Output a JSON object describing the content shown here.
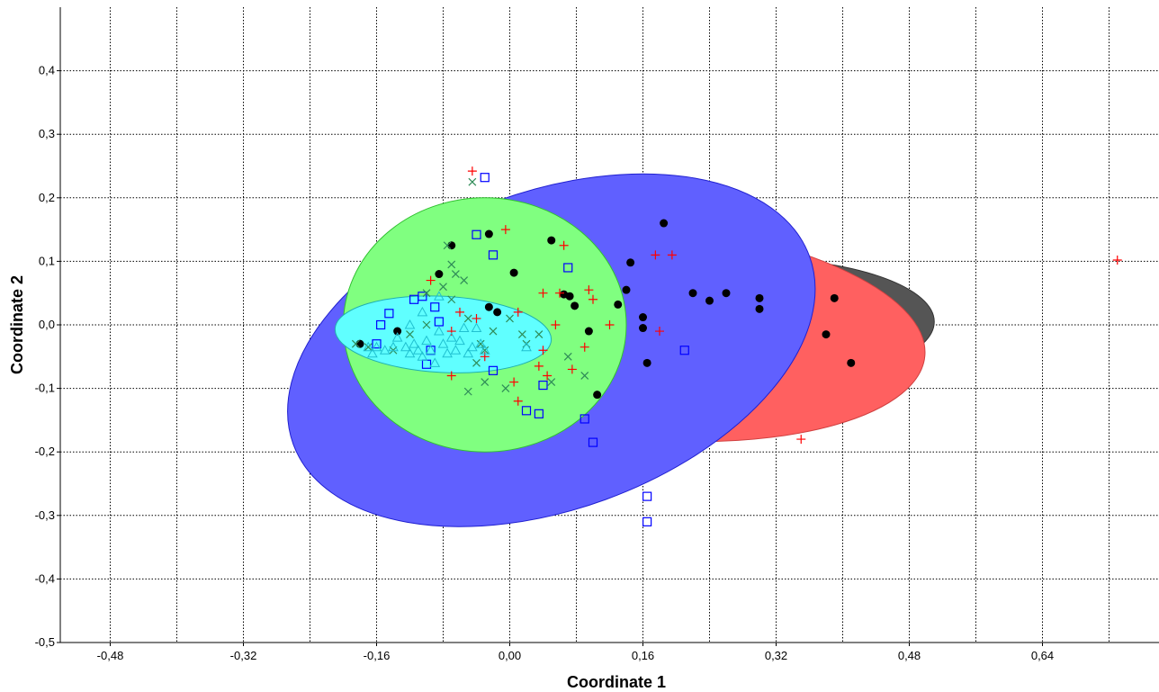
{
  "chart_data": {
    "type": "scatter",
    "title": "",
    "xlabel": "Coordinate 1",
    "ylabel": "Coordinate 2",
    "xlim": [
      -0.54,
      0.78
    ],
    "ylim": [
      -0.5,
      0.5
    ],
    "x_ticks": [
      "-0,48",
      "-0,32",
      "-0,16",
      "0,00",
      "0,16",
      "0,32",
      "0,48",
      "0,64"
    ],
    "y_ticks": [
      "-0,5",
      "-0,4",
      "-0,3",
      "-0,2",
      "-0,1",
      "0,0",
      "0,1",
      "0,2",
      "0,3",
      "0,4"
    ],
    "x_grid": [
      -0.56,
      -0.48,
      -0.4,
      -0.32,
      -0.24,
      -0.16,
      -0.08,
      0.0,
      0.08,
      0.16,
      0.24,
      0.32,
      0.4,
      0.48,
      0.56,
      0.64,
      0.72
    ],
    "y_grid": [
      -0.4,
      -0.3,
      -0.2,
      -0.1,
      0.0,
      0.1,
      0.2,
      0.3,
      0.4
    ],
    "grid": true,
    "ellipses": [
      {
        "color": "#555555",
        "cx": 0.29,
        "cy": 0.005,
        "rx": 0.22,
        "ry": 0.1,
        "rot": 0
      },
      {
        "color": "#ff6060",
        "cx": 0.16,
        "cy": -0.01,
        "rx": 0.34,
        "ry": 0.17,
        "rot": 5
      },
      {
        "color": "#6060ff",
        "cx": 0.05,
        "cy": -0.04,
        "rx": 0.33,
        "ry": 0.25,
        "rot": -20
      },
      {
        "color": "#80ff80",
        "cx": -0.03,
        "cy": 0.0,
        "rx": 0.17,
        "ry": 0.2,
        "rot": 0
      },
      {
        "color": "#60ffff",
        "cx": -0.08,
        "cy": -0.015,
        "rx": 0.13,
        "ry": 0.06,
        "rot": 3
      }
    ],
    "series": [
      {
        "marker": "dot",
        "color": "#000000",
        "points": [
          [
            -0.18,
            -0.03
          ],
          [
            -0.135,
            -0.01
          ],
          [
            -0.085,
            0.08
          ],
          [
            -0.07,
            0.125
          ],
          [
            -0.025,
            0.028
          ],
          [
            -0.025,
            0.143
          ],
          [
            -0.015,
            0.02
          ],
          [
            0.005,
            0.082
          ],
          [
            0.05,
            0.133
          ],
          [
            0.065,
            0.048
          ],
          [
            0.072,
            0.045
          ],
          [
            0.078,
            0.03
          ],
          [
            0.095,
            -0.01
          ],
          [
            0.105,
            -0.11
          ],
          [
            0.13,
            0.032
          ],
          [
            0.14,
            0.055
          ],
          [
            0.145,
            0.098
          ],
          [
            0.16,
            -0.005
          ],
          [
            0.16,
            0.012
          ],
          [
            0.165,
            -0.06
          ],
          [
            0.185,
            0.16
          ],
          [
            0.22,
            0.05
          ],
          [
            0.24,
            0.038
          ],
          [
            0.26,
            0.05
          ],
          [
            0.3,
            0.025
          ],
          [
            0.3,
            0.042
          ],
          [
            0.38,
            -0.015
          ],
          [
            0.39,
            0.042
          ],
          [
            0.41,
            -0.06
          ]
        ]
      },
      {
        "marker": "plus",
        "color": "#ff0000",
        "points": [
          [
            -0.045,
            0.242
          ],
          [
            -0.005,
            0.15
          ],
          [
            -0.095,
            0.07
          ],
          [
            -0.06,
            0.02
          ],
          [
            -0.04,
            0.01
          ],
          [
            -0.07,
            -0.01
          ],
          [
            -0.07,
            -0.08
          ],
          [
            -0.03,
            -0.05
          ],
          [
            0.005,
            -0.09
          ],
          [
            0.01,
            -0.12
          ],
          [
            0.01,
            0.02
          ],
          [
            0.035,
            -0.065
          ],
          [
            0.04,
            0.05
          ],
          [
            0.04,
            -0.04
          ],
          [
            0.045,
            -0.08
          ],
          [
            0.055,
            0.0
          ],
          [
            0.06,
            0.05
          ],
          [
            0.065,
            0.125
          ],
          [
            0.075,
            -0.07
          ],
          [
            0.09,
            -0.035
          ],
          [
            0.095,
            0.055
          ],
          [
            0.1,
            0.04
          ],
          [
            0.12,
            0.0
          ],
          [
            0.175,
            0.11
          ],
          [
            0.18,
            -0.01
          ],
          [
            0.195,
            0.11
          ],
          [
            0.35,
            -0.18
          ],
          [
            0.73,
            0.102
          ]
        ]
      },
      {
        "marker": "square",
        "color": "#0000ff",
        "points": [
          [
            -0.155,
            0.0
          ],
          [
            -0.16,
            -0.03
          ],
          [
            -0.145,
            0.018
          ],
          [
            -0.115,
            0.04
          ],
          [
            -0.105,
            0.045
          ],
          [
            -0.09,
            0.028
          ],
          [
            -0.085,
            0.005
          ],
          [
            -0.095,
            -0.04
          ],
          [
            -0.1,
            -0.062
          ],
          [
            -0.04,
            0.142
          ],
          [
            -0.03,
            0.232
          ],
          [
            -0.02,
            0.11
          ],
          [
            -0.02,
            -0.072
          ],
          [
            0.02,
            -0.135
          ],
          [
            0.035,
            -0.14
          ],
          [
            0.04,
            -0.095
          ],
          [
            0.07,
            0.09
          ],
          [
            0.09,
            -0.148
          ],
          [
            0.1,
            -0.185
          ],
          [
            0.165,
            -0.27
          ],
          [
            0.165,
            -0.31
          ],
          [
            0.21,
            -0.04
          ]
        ]
      },
      {
        "marker": "cross",
        "color": "#2e8b57",
        "points": [
          [
            -0.045,
            0.225
          ],
          [
            -0.075,
            0.125
          ],
          [
            -0.07,
            0.095
          ],
          [
            -0.065,
            0.08
          ],
          [
            -0.08,
            0.06
          ],
          [
            -0.1,
            0.05
          ],
          [
            -0.055,
            0.07
          ],
          [
            -0.07,
            0.04
          ],
          [
            -0.1,
            0.0
          ],
          [
            -0.05,
            0.01
          ],
          [
            -0.035,
            -0.03
          ],
          [
            -0.03,
            -0.04
          ],
          [
            -0.02,
            -0.01
          ],
          [
            -0.04,
            -0.06
          ],
          [
            -0.03,
            -0.09
          ],
          [
            -0.05,
            -0.105
          ],
          [
            -0.005,
            -0.1
          ],
          [
            0.0,
            0.01
          ],
          [
            0.015,
            -0.015
          ],
          [
            0.02,
            -0.03
          ],
          [
            0.035,
            -0.015
          ],
          [
            0.05,
            -0.09
          ],
          [
            0.09,
            -0.08
          ],
          [
            0.07,
            -0.05
          ],
          [
            -0.17,
            -0.035
          ],
          [
            -0.185,
            -0.03
          ],
          [
            -0.14,
            -0.04
          ],
          [
            -0.12,
            -0.015
          ]
        ]
      },
      {
        "marker": "triangle",
        "color": "#20c0d0",
        "points": [
          [
            -0.17,
            -0.035
          ],
          [
            -0.165,
            -0.045
          ],
          [
            -0.16,
            -0.035
          ],
          [
            -0.15,
            -0.04
          ],
          [
            -0.14,
            -0.035
          ],
          [
            -0.135,
            -0.02
          ],
          [
            -0.125,
            -0.035
          ],
          [
            -0.12,
            -0.045
          ],
          [
            -0.115,
            -0.03
          ],
          [
            -0.11,
            -0.04
          ],
          [
            -0.105,
            -0.05
          ],
          [
            -0.1,
            -0.025
          ],
          [
            -0.095,
            -0.04
          ],
          [
            -0.09,
            -0.06
          ],
          [
            -0.085,
            -0.01
          ],
          [
            -0.08,
            -0.03
          ],
          [
            -0.075,
            -0.045
          ],
          [
            -0.07,
            -0.02
          ],
          [
            -0.065,
            -0.04
          ],
          [
            -0.06,
            -0.025
          ],
          [
            -0.055,
            -0.005
          ],
          [
            -0.05,
            -0.045
          ],
          [
            -0.045,
            -0.035
          ],
          [
            -0.04,
            -0.005
          ],
          [
            -0.035,
            -0.03
          ],
          [
            -0.03,
            -0.04
          ],
          [
            -0.105,
            0.02
          ],
          [
            -0.085,
            0.045
          ],
          [
            -0.12,
            0.0
          ],
          [
            0.02,
            -0.035
          ]
        ]
      }
    ]
  }
}
